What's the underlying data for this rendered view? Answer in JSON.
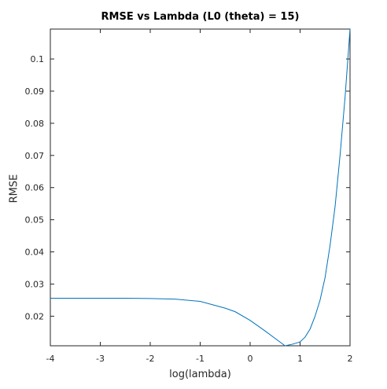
{
  "chart_data": {
    "type": "line",
    "title": "RMSE vs Lambda (L0 (theta) = 15)",
    "xlabel": "log(lambda)",
    "ylabel": "RMSE",
    "xlim": [
      -4,
      2
    ],
    "ylim": [
      0.0108,
      0.1093
    ],
    "xticks": [
      -4,
      -3,
      -2,
      -1,
      0,
      1,
      2
    ],
    "xtick_labels": [
      "-4",
      "-3",
      "-2",
      "-1",
      "0",
      "1",
      "2"
    ],
    "yticks": [
      0.02,
      0.03,
      0.04,
      0.05,
      0.06,
      0.07,
      0.08,
      0.09,
      0.1
    ],
    "ytick_labels": [
      "0.02",
      "0.03",
      "0.04",
      "0.05",
      "0.06",
      "0.07",
      "0.08",
      "0.09",
      "0.1"
    ],
    "grid": false,
    "series": [
      {
        "color": "#0072BD",
        "x": [
          -4,
          -3.5,
          -3,
          -2.5,
          -2,
          -1.5,
          -1,
          -0.5,
          -0.3,
          0,
          0.3,
          0.5,
          0.699,
          0.85,
          1,
          1.1,
          1.2,
          1.3,
          1.4,
          1.5,
          1.6,
          1.7,
          1.8,
          1.9,
          2
        ],
        "y": [
          0.0256,
          0.0256,
          0.0256,
          0.0256,
          0.0255,
          0.0253,
          0.0246,
          0.0225,
          0.0214,
          0.0187,
          0.0154,
          0.0131,
          0.0108,
          0.0113,
          0.012,
          0.0135,
          0.016,
          0.02,
          0.025,
          0.032,
          0.042,
          0.054,
          0.07,
          0.088,
          0.1093
        ]
      }
    ]
  },
  "colors": {
    "axis": "#262626",
    "line": "#0072BD",
    "background": "#ffffff"
  }
}
